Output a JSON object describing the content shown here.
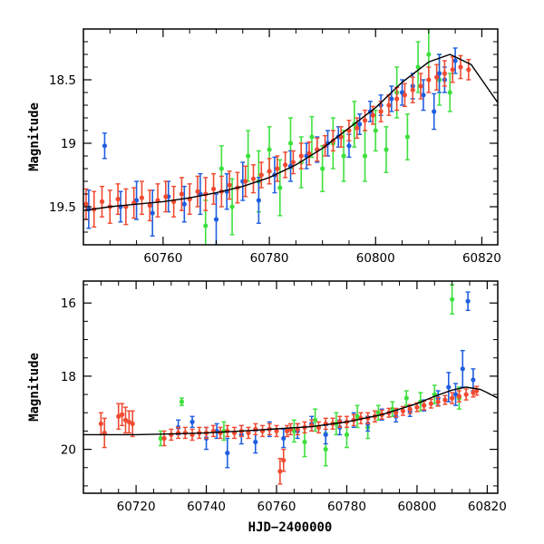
{
  "colors": {
    "blue": "#1f5fe0",
    "green": "#3ee03e",
    "red": "#f04a30",
    "model": "#000000",
    "frame": "#000000"
  },
  "chart_data": [
    {
      "type": "scatter",
      "panel": "top",
      "title": "",
      "xlabel": "",
      "ylabel": "Magnitude",
      "xlim": [
        60745,
        60823
      ],
      "ylim": [
        19.8,
        18.1
      ],
      "y_inverted": true,
      "x_ticks": [
        60760,
        60780,
        60800,
        60820
      ],
      "x_tick_labels": [
        "60760",
        "60780",
        "60800",
        "60820"
      ],
      "y_ticks": [
        18.5,
        19,
        19.5
      ],
      "y_tick_labels": [
        "18.5",
        "19",
        "19.5"
      ],
      "grid": false,
      "legend": "none",
      "series": [
        {
          "color_key": "blue",
          "errorbars": true,
          "x": [
            60746,
            60749,
            60752,
            60755,
            60758,
            60761,
            60764,
            60767,
            60770,
            60772,
            60775,
            60778,
            60781,
            60784,
            60787,
            60789,
            60791,
            60793,
            60795,
            60797,
            60799,
            60801,
            60803,
            60805,
            60807,
            60809,
            60811,
            60812,
            60813,
            60815
          ],
          "y": [
            19.52,
            19.02,
            19.5,
            19.45,
            19.55,
            19.42,
            19.48,
            19.4,
            19.6,
            19.38,
            19.3,
            19.45,
            19.25,
            19.18,
            19.1,
            19.05,
            19.0,
            18.95,
            19.02,
            18.85,
            18.75,
            18.7,
            18.65,
            18.6,
            18.55,
            18.62,
            18.75,
            18.45,
            18.5,
            18.35
          ],
          "err": [
            0.15,
            0.1,
            0.12,
            0.15,
            0.18,
            0.12,
            0.14,
            0.16,
            0.2,
            0.14,
            0.15,
            0.18,
            0.14,
            0.12,
            0.1,
            0.1,
            0.1,
            0.08,
            0.09,
            0.08,
            0.08,
            0.08,
            0.1,
            0.1,
            0.1,
            0.12,
            0.14,
            0.15,
            0.1,
            0.1
          ]
        },
        {
          "color_key": "green",
          "errorbars": true,
          "x": [
            60768,
            60771,
            60773,
            60776,
            60778,
            60780,
            60782,
            60784,
            60786,
            60788,
            60790,
            60792,
            60794,
            60796,
            60798,
            60800,
            60802,
            60804,
            60806,
            60808,
            60810,
            60812,
            60814
          ],
          "y": [
            19.65,
            19.2,
            19.5,
            19.1,
            19.3,
            19.05,
            19.35,
            19.0,
            19.15,
            18.95,
            19.2,
            19.0,
            19.1,
            18.85,
            19.1,
            18.9,
            19.05,
            18.6,
            18.95,
            18.4,
            18.3,
            18.5,
            18.6
          ],
          "err": [
            0.2,
            0.18,
            0.22,
            0.2,
            0.24,
            0.18,
            0.22,
            0.2,
            0.2,
            0.16,
            0.18,
            0.2,
            0.2,
            0.18,
            0.2,
            0.16,
            0.18,
            0.2,
            0.18,
            0.2,
            0.2,
            0.2,
            0.15
          ]
        },
        {
          "color_key": "red",
          "errorbars": true,
          "x": [
            60745.5,
            60747,
            60748.5,
            60750,
            60751.5,
            60753,
            60754.5,
            60756,
            60757.5,
            60759,
            60760.5,
            60762,
            60763.5,
            60765,
            60766.5,
            60768,
            60769.5,
            60771,
            60772.5,
            60774,
            60775.5,
            60777,
            60778.5,
            60780,
            60781.5,
            60783,
            60784.5,
            60786,
            60787.5,
            60789,
            60790.5,
            60792,
            60793.5,
            60795,
            60796.5,
            60798,
            60799.5,
            60801,
            60802.5,
            60804,
            60805.5,
            60807,
            60808.5,
            60810,
            60811.5,
            60813,
            60814.5,
            60816,
            60817.5
          ],
          "y": [
            19.48,
            19.52,
            19.46,
            19.5,
            19.44,
            19.5,
            19.47,
            19.43,
            19.49,
            19.45,
            19.42,
            19.46,
            19.4,
            19.44,
            19.38,
            19.4,
            19.36,
            19.38,
            19.33,
            19.35,
            19.3,
            19.28,
            19.25,
            19.22,
            19.2,
            19.17,
            19.15,
            19.1,
            19.08,
            19.05,
            19.02,
            18.98,
            18.95,
            18.9,
            18.88,
            18.82,
            18.78,
            18.75,
            18.7,
            18.65,
            18.62,
            18.58,
            18.55,
            18.5,
            18.48,
            18.45,
            18.42,
            18.4,
            18.42
          ],
          "err": [
            0.12,
            0.14,
            0.12,
            0.13,
            0.12,
            0.14,
            0.12,
            0.13,
            0.12,
            0.13,
            0.12,
            0.12,
            0.13,
            0.12,
            0.12,
            0.13,
            0.12,
            0.12,
            0.11,
            0.12,
            0.12,
            0.11,
            0.1,
            0.1,
            0.1,
            0.1,
            0.09,
            0.1,
            0.09,
            0.09,
            0.08,
            0.08,
            0.08,
            0.08,
            0.08,
            0.08,
            0.07,
            0.08,
            0.08,
            0.09,
            0.09,
            0.1,
            0.1,
            0.1,
            0.1,
            0.1,
            0.1,
            0.09,
            0.08
          ]
        }
      ],
      "model_curve": {
        "x": [
          60745,
          60750,
          60755,
          60760,
          60765,
          60770,
          60775,
          60780,
          60785,
          60790,
          60795,
          60800,
          60805,
          60810,
          60814,
          60818,
          60820,
          60823
        ],
        "y": [
          19.53,
          19.5,
          19.48,
          19.46,
          19.43,
          19.39,
          19.34,
          19.27,
          19.17,
          19.04,
          18.88,
          18.72,
          18.52,
          18.36,
          18.3,
          18.38,
          18.5,
          18.68
        ]
      }
    },
    {
      "type": "scatter",
      "panel": "bottom",
      "title": "",
      "xlabel": "HJD−2400000",
      "ylabel": "Magnitude",
      "xlim": [
        60705,
        60823
      ],
      "ylim": [
        21.2,
        15.4
      ],
      "y_inverted": true,
      "x_ticks": [
        60720,
        60740,
        60760,
        60780,
        60800,
        60820
      ],
      "x_tick_labels": [
        "60720",
        "60740",
        "60760",
        "60780",
        "60800",
        "60820"
      ],
      "y_ticks": [
        16,
        18,
        20
      ],
      "y_tick_labels": [
        "16",
        "18",
        "20"
      ],
      "grid": false,
      "legend": "none",
      "series": [
        {
          "color_key": "blue",
          "errorbars": true,
          "x": [
            60732,
            60736,
            60740,
            60743,
            60746,
            60750,
            60754,
            60758,
            60762,
            60766,
            60770,
            60774,
            60778,
            60782,
            60786,
            60790,
            60794,
            60798,
            60802,
            60806,
            60809,
            60811,
            60813,
            60814.5,
            60816
          ],
          "y": [
            19.4,
            19.25,
            19.7,
            19.5,
            20.1,
            19.6,
            19.8,
            19.45,
            19.7,
            19.5,
            19.3,
            19.6,
            19.4,
            19.2,
            19.3,
            19.05,
            19.1,
            18.95,
            18.8,
            18.6,
            18.3,
            18.5,
            17.8,
            15.95,
            18.1
          ],
          "err": [
            0.2,
            0.15,
            0.3,
            0.2,
            0.4,
            0.25,
            0.3,
            0.2,
            0.25,
            0.2,
            0.2,
            0.25,
            0.2,
            0.2,
            0.2,
            0.15,
            0.15,
            0.15,
            0.15,
            0.2,
            0.4,
            0.3,
            0.5,
            0.25,
            0.3
          ]
        },
        {
          "color_key": "green",
          "errorbars": true,
          "x": [
            60727,
            60733,
            60745,
            60765,
            60768,
            60771,
            60774,
            60777,
            60780,
            60783,
            60786,
            60789,
            60793,
            60797,
            60801,
            60805,
            60810,
            60812
          ],
          "y": [
            19.7,
            18.7,
            19.5,
            19.5,
            19.8,
            19.2,
            20.0,
            19.3,
            19.6,
            19.1,
            19.4,
            19.0,
            18.9,
            18.6,
            18.7,
            18.5,
            15.9,
            18.6
          ],
          "err": [
            0.2,
            0.1,
            0.25,
            0.3,
            0.4,
            0.3,
            0.45,
            0.3,
            0.35,
            0.3,
            0.3,
            0.2,
            0.2,
            0.2,
            0.25,
            0.25,
            0.4,
            0.3
          ]
        },
        {
          "color_key": "red",
          "errorbars": true,
          "x": [
            60710,
            60711,
            60715,
            60716,
            60717,
            60718,
            60719,
            60728,
            60730,
            60732,
            60734,
            60736,
            60738,
            60740,
            60742,
            60744,
            60746,
            60748,
            60750,
            60752,
            60754,
            60756,
            60758,
            60760,
            60761,
            60762,
            60763,
            60764,
            60766,
            60768,
            60770,
            60772,
            60774,
            60776,
            60778,
            60780,
            60782,
            60784,
            60786,
            60788,
            60790,
            60792,
            60794,
            60796,
            60798,
            60800,
            60802,
            60804,
            60806,
            60808,
            60810,
            60812,
            60814,
            60816,
            60817
          ],
          "y": [
            19.3,
            19.55,
            19.1,
            19.05,
            19.2,
            19.25,
            19.3,
            19.7,
            19.6,
            19.55,
            19.55,
            19.6,
            19.55,
            19.55,
            19.5,
            19.55,
            19.5,
            19.55,
            19.5,
            19.55,
            19.45,
            19.5,
            19.45,
            19.5,
            20.6,
            20.3,
            19.5,
            19.45,
            19.45,
            19.4,
            19.35,
            19.4,
            19.3,
            19.3,
            19.25,
            19.25,
            19.2,
            19.15,
            19.15,
            19.1,
            19.05,
            19.0,
            19.0,
            18.95,
            18.9,
            18.85,
            18.8,
            18.75,
            18.7,
            18.65,
            18.6,
            18.55,
            18.5,
            18.45,
            18.4
          ],
          "err": [
            0.3,
            0.4,
            0.35,
            0.3,
            0.35,
            0.3,
            0.35,
            0.2,
            0.15,
            0.15,
            0.15,
            0.15,
            0.15,
            0.15,
            0.15,
            0.15,
            0.15,
            0.15,
            0.15,
            0.15,
            0.15,
            0.15,
            0.15,
            0.15,
            0.35,
            0.3,
            0.15,
            0.15,
            0.15,
            0.15,
            0.15,
            0.15,
            0.15,
            0.15,
            0.15,
            0.15,
            0.15,
            0.15,
            0.15,
            0.15,
            0.12,
            0.12,
            0.12,
            0.12,
            0.12,
            0.12,
            0.12,
            0.12,
            0.12,
            0.12,
            0.15,
            0.15,
            0.15,
            0.12,
            0.12
          ]
        }
      ],
      "model_curve": {
        "x": [
          60705,
          60720,
          60730,
          60740,
          60750,
          60760,
          60770,
          60780,
          60790,
          60800,
          60805,
          60810,
          60814,
          60818,
          60820,
          60823
        ],
        "y": [
          19.6,
          19.6,
          19.58,
          19.55,
          19.5,
          19.44,
          19.38,
          19.25,
          19.05,
          18.75,
          18.55,
          18.38,
          18.3,
          18.36,
          18.45,
          18.6
        ]
      }
    }
  ]
}
